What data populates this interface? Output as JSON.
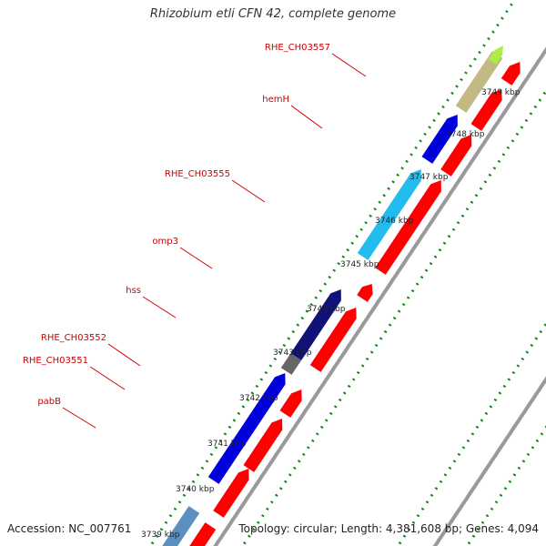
{
  "title": "Rhizobium etli CFN 42, complete genome",
  "footer": {
    "accession": "Accession: NC_007761",
    "summary": "Topology: circular; Length: 4,381,608 bp; Genes: 4,094"
  },
  "gene_labels": [
    "RHE_CH03557",
    "hemH",
    "RHE_CH03555",
    "omp3",
    "hss",
    "RHE_CH03552",
    "RHE_CH03551",
    "pabB"
  ],
  "kbp_labels": [
    "3739 kbp",
    "3740 kbp",
    "3741 kbp",
    "3742 kbp",
    "3743 kbp",
    "3744 kbp",
    "3745 kbp",
    "3746 kbp",
    "3747 kbp",
    "3748 kbp",
    "3749 kbp"
  ],
  "colors": {
    "label_text": "#cc0000",
    "leader_line": "#cc0000",
    "tick_dots": "#118811",
    "backbone": "#999999",
    "reverse_strand": "#ff0000",
    "gene_blue": "#0000dd",
    "gene_skyblue": "#22bbee",
    "gene_navy": "#111177",
    "gene_gray": "#666666",
    "gene_khaki": "#c2b985",
    "gene_lime": "#aaee44",
    "gene_olive": "#6b8e23",
    "gene_steelblue": "#5b8fc0"
  }
}
